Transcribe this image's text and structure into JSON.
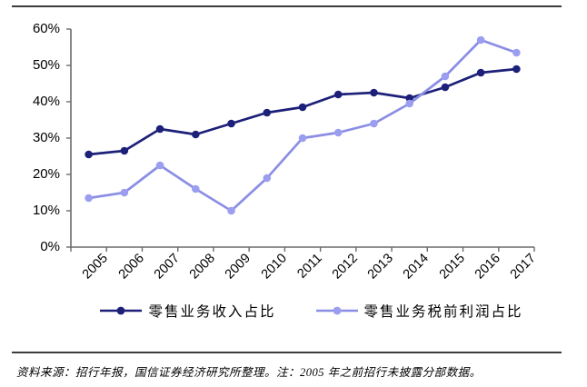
{
  "chart_data": {
    "type": "line",
    "categories": [
      "2005",
      "2006",
      "2007",
      "2008",
      "2009",
      "2010",
      "2011",
      "2012",
      "2013",
      "2014",
      "2015",
      "2016",
      "2017"
    ],
    "series": [
      {
        "name": "零售业务收入占比",
        "color": "#1d2078",
        "marker_color": "#1d2078",
        "values": [
          25.5,
          26.5,
          32.5,
          31.0,
          34.0,
          37.0,
          38.5,
          42.0,
          42.5,
          41.0,
          44.0,
          48.0,
          49.0
        ]
      },
      {
        "name": "零售业务税前利润占比",
        "color": "#8b8ee4",
        "marker_color": "#9b9ef0",
        "values": [
          13.5,
          15.0,
          22.5,
          16.0,
          10.0,
          19.0,
          30.0,
          31.5,
          34.0,
          39.5,
          47.0,
          57.0,
          53.5
        ]
      }
    ],
    "title": "",
    "xlabel": "",
    "ylabel": "",
    "ylim": [
      0,
      60
    ],
    "y_ticks": [
      0,
      10,
      20,
      30,
      40,
      50,
      60
    ],
    "y_tick_suffix": "%",
    "grid": false,
    "legend_position": "bottom"
  },
  "footer": {
    "source_note": "资料来源：招行年报，国信证券经济研究所整理。注：2005 年之前招行未披露分部数据。"
  },
  "colors": {
    "axis": "#6b6b6b",
    "rule": "#3d3d3d",
    "text": "#000000"
  }
}
